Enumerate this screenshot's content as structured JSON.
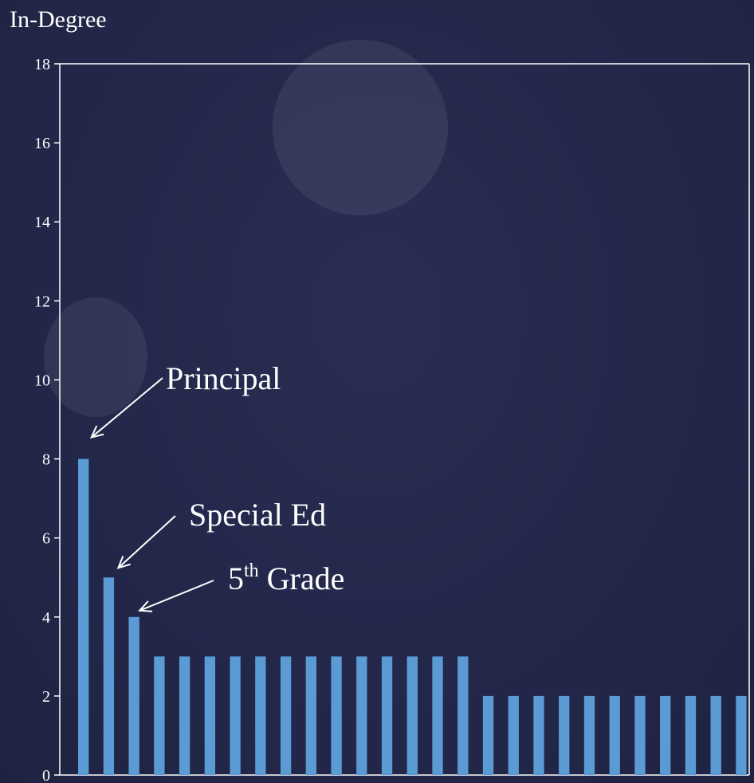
{
  "chart_data": {
    "type": "bar",
    "ylabel": "In-Degree",
    "xlabel": "",
    "title": "",
    "ylim": [
      0,
      18
    ],
    "yticks": [
      0,
      2,
      4,
      6,
      8,
      10,
      12,
      14,
      16,
      18
    ],
    "grid": false,
    "values": [
      8,
      5,
      4,
      3,
      3,
      3,
      3,
      3,
      3,
      3,
      3,
      3,
      3,
      3,
      3,
      3,
      2,
      2,
      2,
      2,
      2,
      2,
      2,
      2,
      2,
      2,
      2
    ],
    "bar_color": "#5b9bd5",
    "annotations": [
      {
        "name": "principal",
        "text": "Principal",
        "bar_index": 0
      },
      {
        "name": "special-ed",
        "text": "Special Ed",
        "bar_index": 1
      },
      {
        "name": "fifth-grade",
        "text_main": "5",
        "text_sup": "th",
        "text_rest": " Grade",
        "bar_index": 2
      }
    ]
  },
  "colors": {
    "background": "#24284a",
    "axis": "#ffffff",
    "text": "#ffffff",
    "bar": "#5b9bd5"
  }
}
